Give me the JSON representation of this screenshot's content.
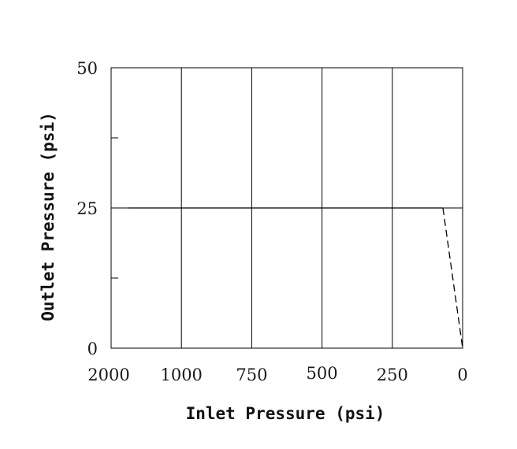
{
  "chart_data": {
    "type": "line",
    "xlabel": "Inlet Pressure (psi)",
    "ylabel": "Outlet Pressure (psi)",
    "x_tick_labels": [
      "2000",
      "1000",
      "750",
      "500",
      "250",
      "0"
    ],
    "y_tick_labels": [
      "0",
      "25",
      "50"
    ],
    "x_axis_order": "descending",
    "ylim": [
      0,
      50
    ],
    "grid": "vertical lines at x ticks, horizontal line at y = 25",
    "series": [
      {
        "style": "solid",
        "points": [
          {
            "x": 1750,
            "y": 25
          },
          {
            "x": 70,
            "y": 25
          }
        ]
      },
      {
        "style": "dashed",
        "points": [
          {
            "x": 70,
            "y": 25
          },
          {
            "x": 0,
            "y": 0
          }
        ]
      }
    ],
    "colors": {
      "line": "#000000",
      "grid": "#000000",
      "text": "#1a1a1a"
    }
  }
}
